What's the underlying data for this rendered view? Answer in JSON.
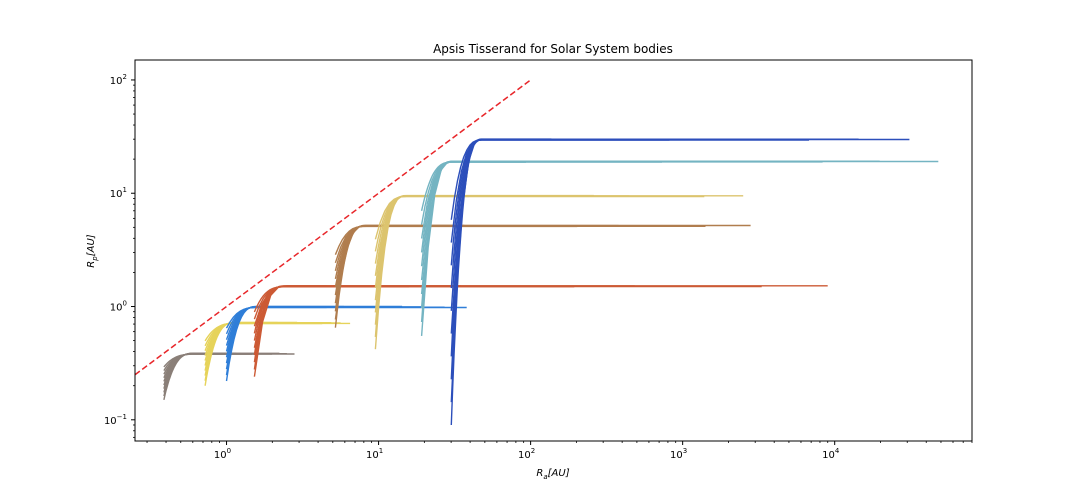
{
  "chart_data": {
    "type": "line",
    "title": "Apsis Tisserand for Solar System bodies",
    "xlabel_base": "R",
    "xlabel_sub": "a",
    "xlabel_unit": "[AU]",
    "ylabel_base": "R",
    "ylabel_sub": "p",
    "ylabel_unit": "[AU]",
    "xscale": "log",
    "yscale": "log",
    "xlim": [
      0.25,
      80000
    ],
    "ylim": [
      0.065,
      150
    ],
    "x_ticks": [
      {
        "value": 1,
        "base": "10",
        "exp": "0"
      },
      {
        "value": 10,
        "base": "10",
        "exp": "1"
      },
      {
        "value": 100,
        "base": "10",
        "exp": "2"
      },
      {
        "value": 1000,
        "base": "10",
        "exp": "3"
      },
      {
        "value": 10000,
        "base": "10",
        "exp": "4"
      }
    ],
    "y_ticks": [
      {
        "value": 0.1,
        "base": "10",
        "exp": "−1"
      },
      {
        "value": 1,
        "base": "10",
        "exp": "0"
      },
      {
        "value": 10,
        "base": "10",
        "exp": "1"
      },
      {
        "value": 100,
        "base": "10",
        "exp": "2"
      }
    ],
    "grid": false,
    "reference_line": {
      "x": [
        0.25,
        100
      ],
      "y": [
        0.25,
        100
      ],
      "color": "#e8262a",
      "style": "dashed"
    },
    "bodies": [
      {
        "a": 0.387,
        "color": "#8a7f78",
        "ymin": 0.15,
        "xmax": 2.8
      },
      {
        "a": 0.723,
        "color": "#e6d35a",
        "ymin": 0.2,
        "xmax": 6.5
      },
      {
        "a": 1.0,
        "color": "#2f7ed8",
        "ymin": 0.22,
        "xmax": 38
      },
      {
        "a": 1.524,
        "color": "#cc5a35",
        "ymin": 0.24,
        "xmax": 9000
      },
      {
        "a": 5.203,
        "color": "#b07d4e",
        "ymin": 0.65,
        "xmax": 2800
      },
      {
        "a": 9.537,
        "color": "#dcc46e",
        "ymin": 0.42,
        "xmax": 2500
      },
      {
        "a": 19.19,
        "color": "#74b4c2",
        "ymin": 0.55,
        "xmax": 48000
      },
      {
        "a": 30.07,
        "color": "#2c4fbb",
        "ymin": 0.09,
        "xmax": 31000
      }
    ]
  }
}
